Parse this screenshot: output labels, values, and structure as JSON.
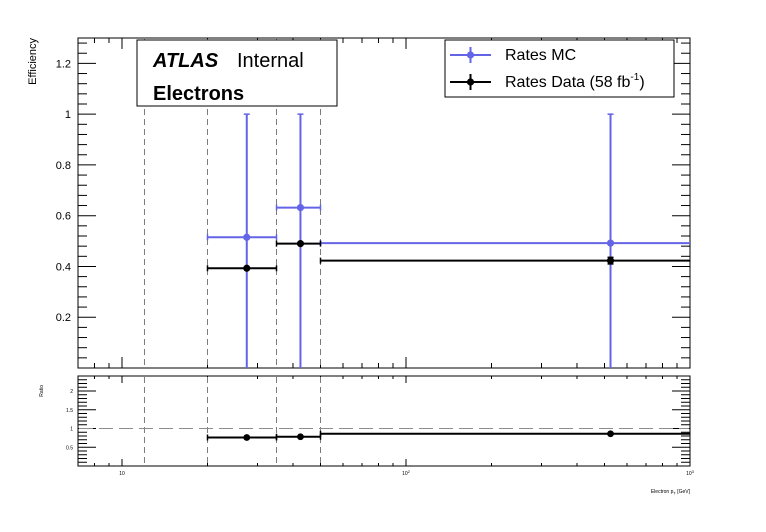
{
  "chart_data": {
    "type": "scatter",
    "x_scale": "log",
    "xlim": [
      7,
      1000
    ],
    "ylabel": "Efficiency",
    "ylim": [
      0,
      1.3
    ],
    "yticks": [
      "0.2",
      "0.4",
      "0.6",
      "0.8",
      "1",
      "1.2"
    ],
    "ratio_ylabel": "Ratio",
    "ratio_ylim": [
      0,
      2.4
    ],
    "ratio_yticks": [
      "0.5",
      "1",
      "1.5",
      "2"
    ],
    "xlabel_prefix": "Electron p",
    "xlabel_sub": "T",
    "xlabel_suffix": " [GeV]",
    "xticks": [
      {
        "value": 10,
        "base": "10",
        "exp": ""
      },
      {
        "value": 100,
        "base": "10",
        "exp": "2"
      },
      {
        "value": 1000,
        "base": "10",
        "exp": "3"
      }
    ],
    "dashed_lines_x": [
      12,
      20,
      35,
      50
    ],
    "ratio_reference": 1,
    "atlas_label": "ATLAS",
    "atlas_status": "Internal",
    "channel_label": "Electrons",
    "legend_position": "top-right",
    "legend": [
      {
        "label": "Rates MC",
        "sup": "",
        "tail": "",
        "series": 0
      },
      {
        "label": "Rates Data (58 fb",
        "sup": "-1",
        "tail": ")",
        "series": 1
      }
    ],
    "series": [
      {
        "name": "Rates MC",
        "color": "#6464e6",
        "points": [
          {
            "x": 27.5,
            "xlow": 20,
            "xhigh": 35,
            "y": 0.515,
            "ylow": 0.0,
            "yhigh": 1.0
          },
          {
            "x": 42.5,
            "xlow": 35,
            "xhigh": 50,
            "y": 0.632,
            "ylow": 0.0,
            "yhigh": 1.0
          },
          {
            "x": 525,
            "xlow": 50,
            "xhigh": 1000,
            "y": 0.492,
            "ylow": 0.0,
            "yhigh": 1.0
          }
        ]
      },
      {
        "name": "Rates Data (58 fb-1)",
        "color": "#000000",
        "points": [
          {
            "x": 27.5,
            "xlow": 20,
            "xhigh": 35,
            "y": 0.393,
            "ylow": 0.393,
            "yhigh": 0.393
          },
          {
            "x": 42.5,
            "xlow": 35,
            "xhigh": 50,
            "y": 0.49,
            "ylow": 0.49,
            "yhigh": 0.49
          },
          {
            "x": 525,
            "xlow": 50,
            "xhigh": 1000,
            "y": 0.423,
            "ylow": 0.41,
            "yhigh": 0.436
          }
        ]
      }
    ],
    "ratio_series": {
      "color": "#000000",
      "points": [
        {
          "x": 27.5,
          "xlow": 20,
          "xhigh": 35,
          "y": 0.76
        },
        {
          "x": 42.5,
          "xlow": 35,
          "xhigh": 50,
          "y": 0.78
        },
        {
          "x": 525,
          "xlow": 50,
          "xhigh": 1000,
          "y": 0.86
        }
      ]
    }
  }
}
